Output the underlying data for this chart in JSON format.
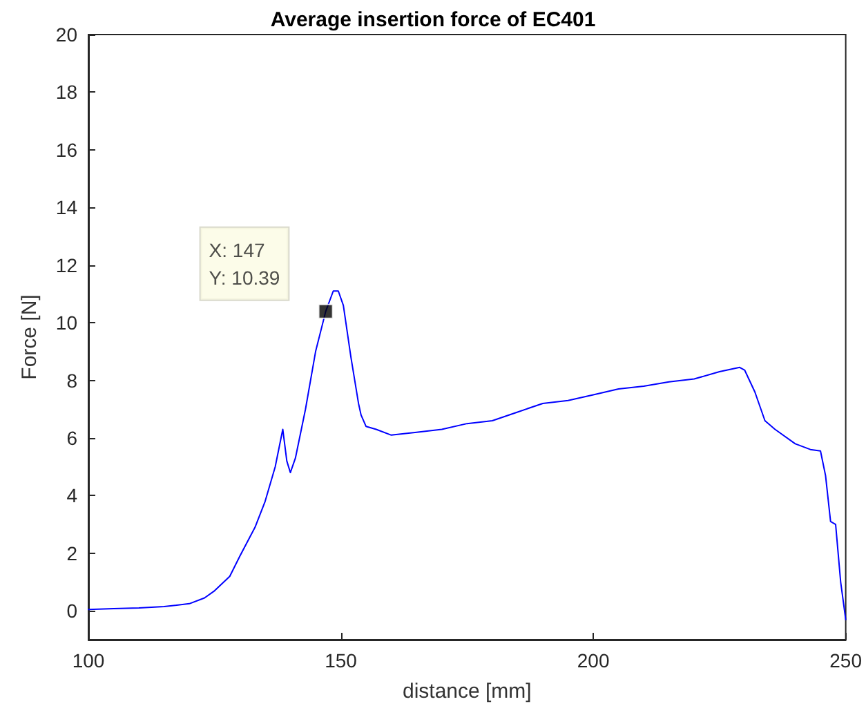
{
  "chart_data": {
    "type": "line",
    "title": "Average insertion force of EC401",
    "xlabel": "distance [mm]",
    "ylabel": "Force [N]",
    "x": [
      100,
      105,
      110,
      115,
      120,
      123,
      125,
      128,
      130,
      133,
      135,
      137,
      138.5,
      139.3,
      140,
      141,
      143,
      145,
      147,
      148.5,
      149.5,
      150.5,
      152,
      153.5,
      154,
      155,
      157,
      160,
      165,
      170,
      175,
      180,
      185,
      190,
      195,
      200,
      205,
      210,
      215,
      220,
      225,
      229,
      230,
      232,
      234,
      236,
      240,
      243,
      245,
      246,
      247,
      248,
      249,
      250
    ],
    "series": [
      {
        "color": "#0000ff",
        "values": [
          0.05,
          0.08,
          0.1,
          0.15,
          0.25,
          0.45,
          0.7,
          1.2,
          1.9,
          2.9,
          3.8,
          5.0,
          6.3,
          5.2,
          4.8,
          5.3,
          7.0,
          9.0,
          10.39,
          11.1,
          11.1,
          10.6,
          8.8,
          7.2,
          6.8,
          6.4,
          6.3,
          6.1,
          6.2,
          6.3,
          6.5,
          6.6,
          6.9,
          7.2,
          7.3,
          7.5,
          7.7,
          7.8,
          7.95,
          8.05,
          8.3,
          8.45,
          8.35,
          7.6,
          6.6,
          6.3,
          5.8,
          5.6,
          5.55,
          4.7,
          3.1,
          3.0,
          1.0,
          -0.3
        ]
      }
    ],
    "xlim": [
      100,
      250
    ],
    "xticks": [
      100,
      150,
      200,
      250
    ],
    "ylim": [
      -1,
      20
    ],
    "yticks": [
      0,
      2,
      4,
      6,
      8,
      10,
      12,
      14,
      16,
      18,
      20
    ],
    "grid": false,
    "marker": "none",
    "line_style": "solid",
    "annotations": [
      {
        "text": "X: 147\nY: 10.39",
        "x": 147,
        "y": 10.39
      }
    ]
  }
}
